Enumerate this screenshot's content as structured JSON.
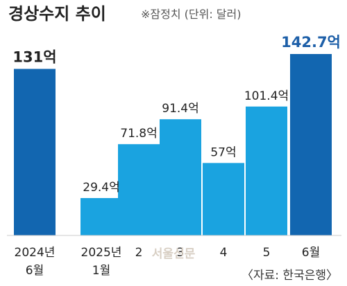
{
  "header": {
    "title": "경상수지 추이",
    "note": "※잠정치 (단위: 달러)"
  },
  "source": "〈자료: 한국은행〉",
  "watermark": "서울신문",
  "colors": {
    "bar_light": "#1aa3e0",
    "bar_dark": "#1266b0",
    "highlight_label": "#1d5fa8",
    "text": "#222222"
  },
  "chart_data": {
    "type": "bar",
    "title": "경상수지 추이",
    "unit": "억 달러",
    "categories": [
      {
        "line1": "2024년",
        "line2": "6월"
      },
      {
        "line1": "2025년",
        "line2": "1월"
      },
      {
        "line1": "2",
        "line2": ""
      },
      {
        "line1": "3",
        "line2": ""
      },
      {
        "line1": "4",
        "line2": ""
      },
      {
        "line1": "5",
        "line2": ""
      },
      {
        "line1": "6월",
        "line2": ""
      }
    ],
    "values": [
      131,
      29.4,
      71.8,
      91.4,
      57,
      101.4,
      142.7
    ],
    "value_labels": [
      "131억",
      "29.4억",
      "71.8억",
      "91.4억",
      "57억",
      "101.4억",
      "142.7억"
    ],
    "highlight": [
      true,
      false,
      false,
      false,
      false,
      false,
      true
    ],
    "ylim": [
      0,
      142.7
    ],
    "grid": false,
    "legend": "none"
  }
}
